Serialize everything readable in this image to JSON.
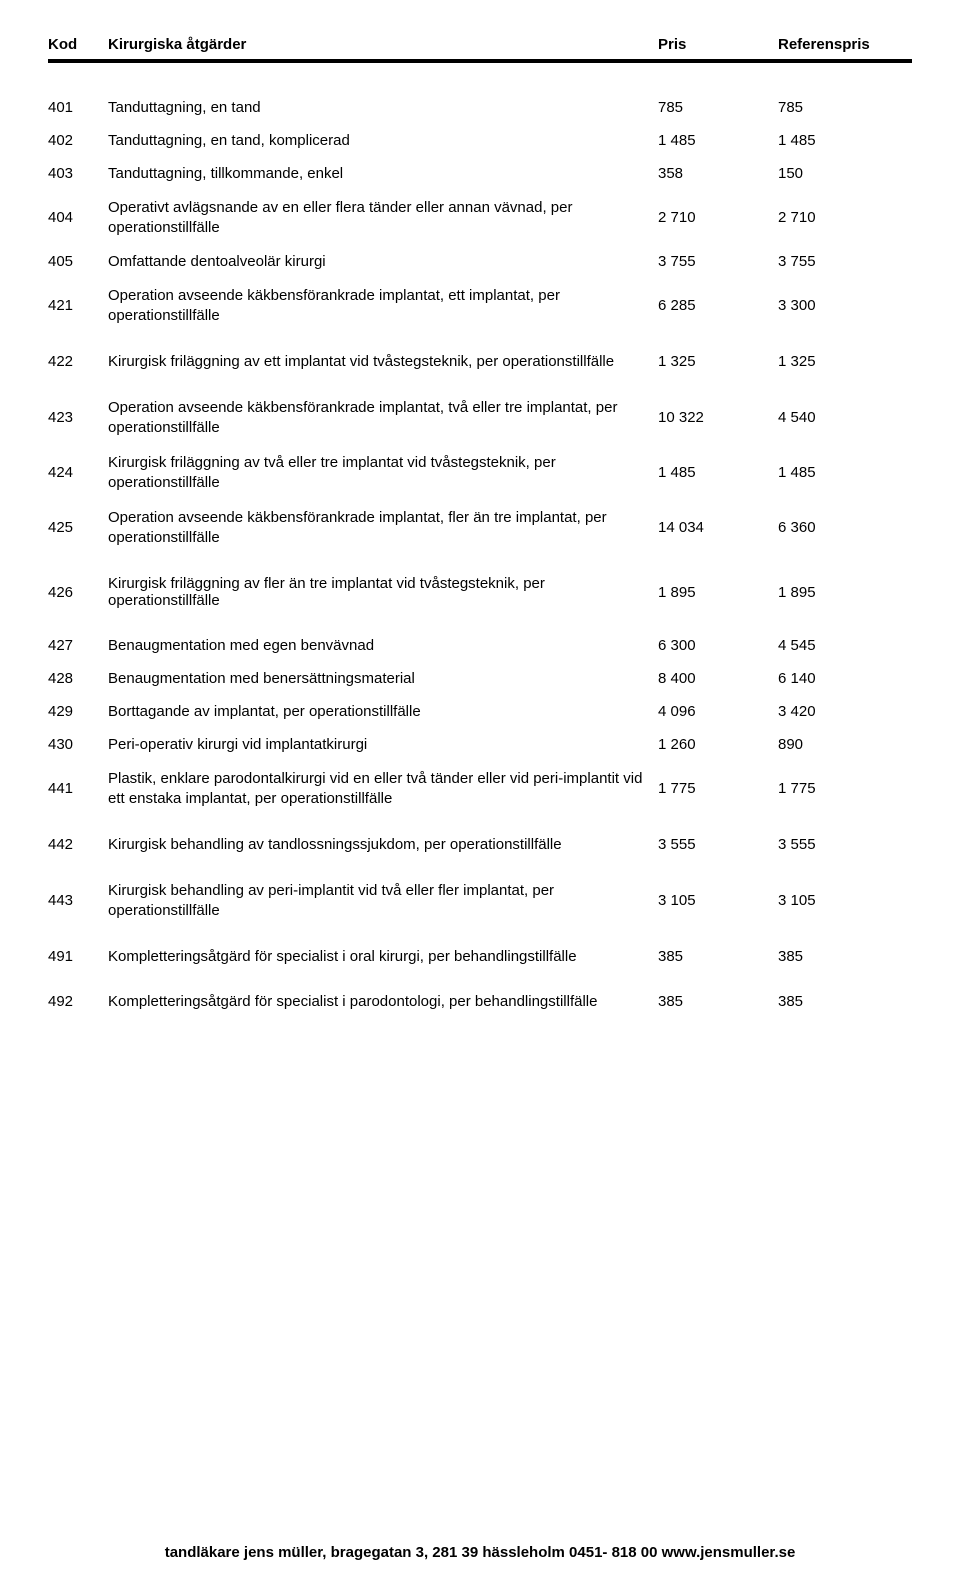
{
  "header": {
    "kod": "Kod",
    "desc": "Kirurgiska åtgärder",
    "pris": "Pris",
    "ref": "Referenspris"
  },
  "rows": [
    {
      "kod": "401",
      "desc": "Tanduttagning, en tand",
      "pris": "785",
      "ref": "785",
      "multi": false
    },
    {
      "kod": "402",
      "desc": "Tanduttagning, en tand, komplicerad",
      "pris": "1 485",
      "ref": "1 485",
      "multi": false
    },
    {
      "kod": "403",
      "desc": "Tanduttagning, tillkommande, enkel",
      "pris": "358",
      "ref": "150",
      "multi": false
    },
    {
      "kod": "404",
      "desc": "Operativt avlägsnande av en eller flera tänder eller annan vävnad, per operationstillfälle",
      "pris": "2 710",
      "ref": "2 710",
      "multi": true
    },
    {
      "kod": "405",
      "desc": "Omfattande dentoalveolär kirurgi",
      "pris": "3 755",
      "ref": "3 755",
      "multi": false
    },
    {
      "kod": "421",
      "desc": "Operation avseende käkbensförankrade implantat, ett implantat, per operationstillfälle",
      "pris": "6 285",
      "ref": "3 300",
      "multi": true,
      "gap": true
    },
    {
      "kod": "422",
      "desc": "Kirurgisk friläggning av ett implantat vid tvåstegsteknik, per operationstillfälle",
      "pris": "1 325",
      "ref": "1 325",
      "multi": false,
      "gap": true
    },
    {
      "kod": "423",
      "desc": "Operation avseende käkbensförankrade implantat, två eller tre implantat, per operationstillfälle",
      "pris": "10 322",
      "ref": "4 540",
      "multi": true
    },
    {
      "kod": "424",
      "desc": "Kirurgisk friläggning av två eller tre implantat vid tvåstegsteknik, per operationstillfälle",
      "pris": "1 485",
      "ref": "1 485",
      "multi": true
    },
    {
      "kod": "425",
      "desc": "Operation avseende käkbensförankrade implantat, fler än tre implantat, per operationstillfälle",
      "pris": "14 034",
      "ref": "6 360",
      "multi": true,
      "gap": true
    },
    {
      "kod": "426",
      "desc": "Kirurgisk friläggning av fler än tre implantat vid tvåstegsteknik, per operationstillfälle",
      "pris": "1 895",
      "ref": "1 895",
      "multi": false,
      "gap": true
    },
    {
      "kod": "427",
      "desc": "Benaugmentation med egen benvävnad",
      "pris": "6 300",
      "ref": "4 545",
      "multi": false
    },
    {
      "kod": "428",
      "desc": "Benaugmentation med benersättningsmaterial",
      "pris": "8 400",
      "ref": "6 140",
      "multi": false
    },
    {
      "kod": "429",
      "desc": "Borttagande av implantat, per operationstillfälle",
      "pris": "4 096",
      "ref": "3 420",
      "multi": false
    },
    {
      "kod": "430",
      "desc": "Peri-operativ kirurgi vid implantatkirurgi",
      "pris": "1 260",
      "ref": "890",
      "multi": false
    },
    {
      "kod": "441",
      "desc": "Plastik, enklare parodontalkirurgi vid en eller två tänder eller vid peri-implantit vid ett enstaka implantat, per operationstillfälle",
      "pris": "1 775",
      "ref": "1 775",
      "multi": true,
      "gap": true
    },
    {
      "kod": "442",
      "desc": "Kirurgisk behandling av tandlossningssjukdom, per operationstillfälle",
      "pris": "3 555",
      "ref": "3 555",
      "multi": false,
      "gap": true
    },
    {
      "kod": "443",
      "desc": "Kirurgisk behandling av peri-implantit vid två eller fler implantat, per operationstillfälle",
      "pris": "3 105",
      "ref": "3 105",
      "multi": true,
      "gap": true
    },
    {
      "kod": "491",
      "desc": "Kompletteringsåtgärd för specialist i oral kirurgi, per behandlingstillfälle",
      "pris": "385",
      "ref": "385",
      "multi": false,
      "gap": true
    },
    {
      "kod": "492",
      "desc": "Kompletteringsåtgärd för specialist i parodontologi, per behandlingstillfälle",
      "pris": "385",
      "ref": "385",
      "multi": false
    }
  ],
  "footer": "tandläkare jens müller, bragegatan 3, 281 39 hässleholm  0451- 818 00  www.jensmuller.se"
}
